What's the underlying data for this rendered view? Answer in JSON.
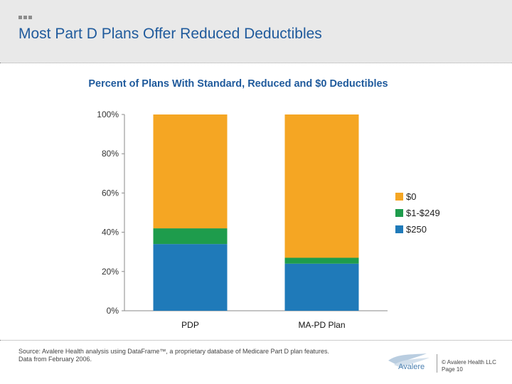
{
  "slide": {
    "title": "Most Part D Plans Offer Reduced Deductibles",
    "source_line1": "Source:  Avalere Health analysis using DataFrame™, a proprietary database of Medicare Part D plan features.",
    "source_line2": "Data from February 2006.",
    "logo_text": "Avalere",
    "copyright": "© Avalere Health LLC",
    "page": "Page 10"
  },
  "chart_data": {
    "type": "bar",
    "stacked": true,
    "title": "Percent of Plans With Standard, Reduced and $0 Deductibles",
    "categories": [
      "PDP",
      "MA-PD Plan"
    ],
    "series": [
      {
        "name": "$250",
        "color": "#1f7ab9",
        "values": [
          34,
          24
        ]
      },
      {
        "name": "$1-$249",
        "color": "#1e9c4c",
        "values": [
          8,
          3
        ]
      },
      {
        "name": "$0",
        "color": "#f5a623",
        "values": [
          58,
          73
        ]
      }
    ],
    "ylim": [
      0,
      100
    ],
    "yticks": [
      "0%",
      "20%",
      "40%",
      "60%",
      "80%",
      "100%"
    ],
    "legend_position": "right",
    "legend_order": [
      "$0",
      "$1-$249",
      "$250"
    ],
    "grid": false
  }
}
